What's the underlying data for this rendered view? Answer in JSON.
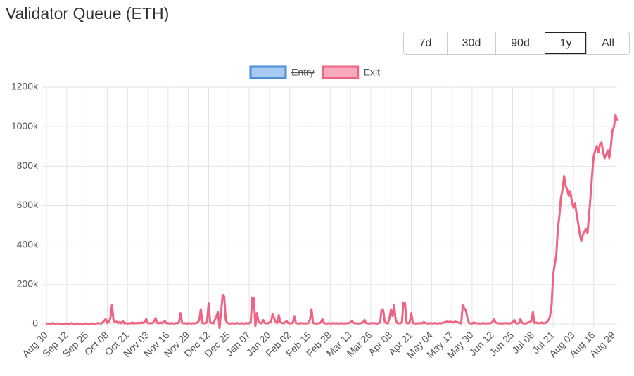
{
  "title": "Validator Queue (ETH)",
  "range_buttons": [
    "7d",
    "30d",
    "90d",
    "1y",
    "All"
  ],
  "selected": 3,
  "chart_data": {
    "type": "line",
    "categories": [
      "Aug 30",
      null,
      null,
      null,
      null,
      null,
      null,
      null,
      null,
      null,
      null,
      null,
      null,
      "Sep 12",
      null,
      null,
      null,
      null,
      null,
      null,
      null,
      null,
      null,
      null,
      null,
      null,
      "Sep 25",
      null,
      null,
      null,
      null,
      null,
      null,
      null,
      null,
      null,
      null,
      null,
      null,
      "Oct 08",
      null,
      null,
      null,
      null,
      null,
      null,
      null,
      null,
      null,
      null,
      null,
      null,
      "Oct 21",
      null,
      null,
      null,
      null,
      null,
      null,
      null,
      null,
      null,
      null,
      null,
      null,
      "Nov 03",
      null,
      null,
      null,
      null,
      null,
      null,
      null,
      null,
      null,
      null,
      null,
      null,
      "Nov 16",
      null,
      null,
      null,
      null,
      null,
      null,
      null,
      null,
      null,
      null,
      null,
      null,
      "Nov 29",
      null,
      null,
      null,
      null,
      null,
      null,
      null,
      null,
      null,
      null,
      null,
      null,
      "Dec 12",
      null,
      null,
      null,
      null,
      null,
      null,
      null,
      null,
      null,
      null,
      null,
      null,
      "Dec 25",
      null,
      null,
      null,
      null,
      null,
      null,
      null,
      null,
      null,
      null,
      null,
      null,
      "Jan 07",
      null,
      null,
      null,
      null,
      null,
      null,
      null,
      null,
      null,
      null,
      null,
      null,
      "Jan 20",
      null,
      null,
      null,
      null,
      null,
      null,
      null,
      null,
      null,
      null,
      null,
      null,
      "Feb 02",
      null,
      null,
      null,
      null,
      null,
      null,
      null,
      null,
      null,
      null,
      null,
      null,
      "Feb 15",
      null,
      null,
      null,
      null,
      null,
      null,
      null,
      null,
      null,
      null,
      null,
      null,
      "Feb 28",
      null,
      null,
      null,
      null,
      null,
      null,
      null,
      null,
      null,
      null,
      null,
      null,
      "Mar 13",
      null,
      null,
      null,
      null,
      null,
      null,
      null,
      null,
      null,
      null,
      null,
      null,
      "Mar 26",
      null,
      null,
      null,
      null,
      null,
      null,
      null,
      null,
      null,
      null,
      null,
      null,
      "Apr 08",
      null,
      null,
      null,
      null,
      null,
      null,
      null,
      null,
      null,
      null,
      null,
      null,
      "Apr 21",
      null,
      null,
      null,
      null,
      null,
      null,
      null,
      null,
      null,
      null,
      null,
      null,
      "May 04",
      null,
      null,
      null,
      null,
      null,
      null,
      null,
      null,
      null,
      null,
      null,
      null,
      "May 17",
      null,
      null,
      null,
      null,
      null,
      null,
      null,
      null,
      null,
      null,
      null,
      null,
      "May 30",
      null,
      null,
      null,
      null,
      null,
      null,
      null,
      null,
      null,
      null,
      null,
      null,
      "Jun 12",
      null,
      null,
      null,
      null,
      null,
      null,
      null,
      null,
      null,
      null,
      null,
      null,
      "Jun 25",
      null,
      null,
      null,
      null,
      null,
      null,
      null,
      null,
      null,
      null,
      null,
      null,
      "Jul 08",
      null,
      null,
      null,
      null,
      null,
      null,
      null,
      null,
      null,
      null,
      null,
      null,
      "Jul 21",
      null,
      null,
      null,
      null,
      null,
      null,
      null,
      null,
      null,
      null,
      null,
      null,
      "Aug 03",
      null,
      null,
      null,
      null,
      null,
      null,
      null,
      null,
      null,
      null,
      null,
      null,
      "Aug 16",
      null,
      null,
      null,
      null,
      null,
      null,
      null,
      null,
      null,
      null,
      null,
      null,
      "Aug 29",
      null,
      null
    ],
    "series": [
      {
        "name": "Entry",
        "color": "#4a90d9",
        "fill": "#a7c9f2",
        "hidden": true
      },
      {
        "name": "Exit",
        "color": "#ef6483",
        "fill": "#f7aabb",
        "values": [
          2000,
          3000,
          1000,
          2000,
          4000,
          2000,
          1000,
          3000,
          2000,
          1000,
          2000,
          1000,
          3000,
          2000,
          1000,
          2000,
          4000,
          2000,
          1000,
          2000,
          3000,
          1000,
          2000,
          1000,
          2000,
          3000,
          1000,
          2000,
          1000,
          3000,
          2000,
          1000,
          2000,
          5000,
          3000,
          2000,
          8000,
          15000,
          25000,
          5000,
          10000,
          30000,
          95000,
          20000,
          8000,
          12000,
          5000,
          10000,
          4000,
          15000,
          3000,
          5000,
          2000,
          4000,
          3000,
          8000,
          2000,
          5000,
          3000,
          6000,
          4000,
          8000,
          5000,
          10000,
          25000,
          6000,
          3000,
          5000,
          4000,
          12000,
          30000,
          5000,
          3000,
          8000,
          4000,
          10000,
          15000,
          3000,
          5000,
          2000,
          4000,
          3000,
          2000,
          5000,
          3000,
          8000,
          55000,
          5000,
          3000,
          4000,
          2000,
          5000,
          3000,
          2000,
          4000,
          3000,
          5000,
          8000,
          20000,
          75000,
          5000,
          3000,
          4000,
          10000,
          105000,
          8000,
          5000,
          3000,
          20000,
          40000,
          60000,
          -20000,
          60000,
          145000,
          140000,
          20000,
          5000,
          3000,
          2000,
          4000,
          3000,
          2000,
          5000,
          3000,
          2000,
          4000,
          3000,
          2000,
          5000,
          3000,
          4000,
          10000,
          135000,
          130000,
          -10000,
          55000,
          10000,
          5000,
          3000,
          20000,
          5000,
          3000,
          4000,
          8000,
          10000,
          50000,
          30000,
          10000,
          5000,
          45000,
          10000,
          5000,
          3000,
          8000,
          15000,
          5000,
          3000,
          4000,
          5000,
          40000,
          5000,
          3000,
          2000,
          5000,
          3000,
          4000,
          2000,
          3000,
          5000,
          20000,
          75000,
          5000,
          3000,
          2000,
          4000,
          3000,
          8000,
          25000,
          5000,
          3000,
          2000,
          4000,
          3000,
          2000,
          5000,
          3000,
          4000,
          2000,
          3000,
          5000,
          3000,
          2000,
          4000,
          3000,
          5000,
          8000,
          15000,
          5000,
          3000,
          4000,
          2000,
          3000,
          5000,
          8000,
          20000,
          5000,
          3000,
          2000,
          4000,
          3000,
          5000,
          3000,
          2000,
          4000,
          8000,
          75000,
          70000,
          10000,
          5000,
          3000,
          30000,
          75000,
          40000,
          95000,
          20000,
          5000,
          3000,
          4000,
          10000,
          110000,
          105000,
          5000,
          3000,
          10000,
          55000,
          5000,
          3000,
          2000,
          4000,
          3000,
          5000,
          3000,
          10000,
          5000,
          3000,
          2000,
          4000,
          3000,
          2000,
          5000,
          3000,
          2000,
          4000,
          3000,
          5000,
          8000,
          10000,
          12000,
          10000,
          12000,
          10000,
          8000,
          12000,
          10000,
          8000,
          5000,
          3000,
          95000,
          80000,
          70000,
          30000,
          5000,
          3000,
          2000,
          8000,
          5000,
          3000,
          4000,
          2000,
          3000,
          5000,
          3000,
          2000,
          4000,
          3000,
          5000,
          10000,
          25000,
          8000,
          5000,
          3000,
          4000,
          2000,
          3000,
          5000,
          3000,
          4000,
          2000,
          5000,
          8000,
          20000,
          5000,
          3000,
          4000,
          25000,
          5000,
          3000,
          2000,
          4000,
          8000,
          10000,
          15000,
          60000,
          5000,
          8000,
          3000,
          5000,
          4000,
          8000,
          3000,
          5000,
          10000,
          20000,
          40000,
          100000,
          250000,
          300000,
          350000,
          480000,
          550000,
          640000,
          680000,
          750000,
          700000,
          680000,
          650000,
          670000,
          620000,
          590000,
          610000,
          560000,
          510000,
          460000,
          420000,
          450000,
          470000,
          480000,
          460000,
          550000,
          650000,
          760000,
          850000,
          880000,
          900000,
          870000,
          910000,
          920000,
          870000,
          840000,
          860000,
          880000,
          840000,
          900000,
          980000,
          1000000,
          1060000,
          1030000
        ]
      }
    ],
    "ylim": [
      0,
      1200000
    ],
    "yticks": [
      0,
      {
        "value": 200000,
        "label": "200k"
      },
      {
        "value": 400000,
        "label": "400k"
      },
      {
        "value": 600000,
        "label": "600k"
      },
      {
        "value": 800000,
        "label": "800k"
      },
      {
        "value": 1000000,
        "label": "1000k"
      },
      {
        "value": 1200000,
        "label": "1200k"
      }
    ],
    "grid": true,
    "legend": "top"
  }
}
